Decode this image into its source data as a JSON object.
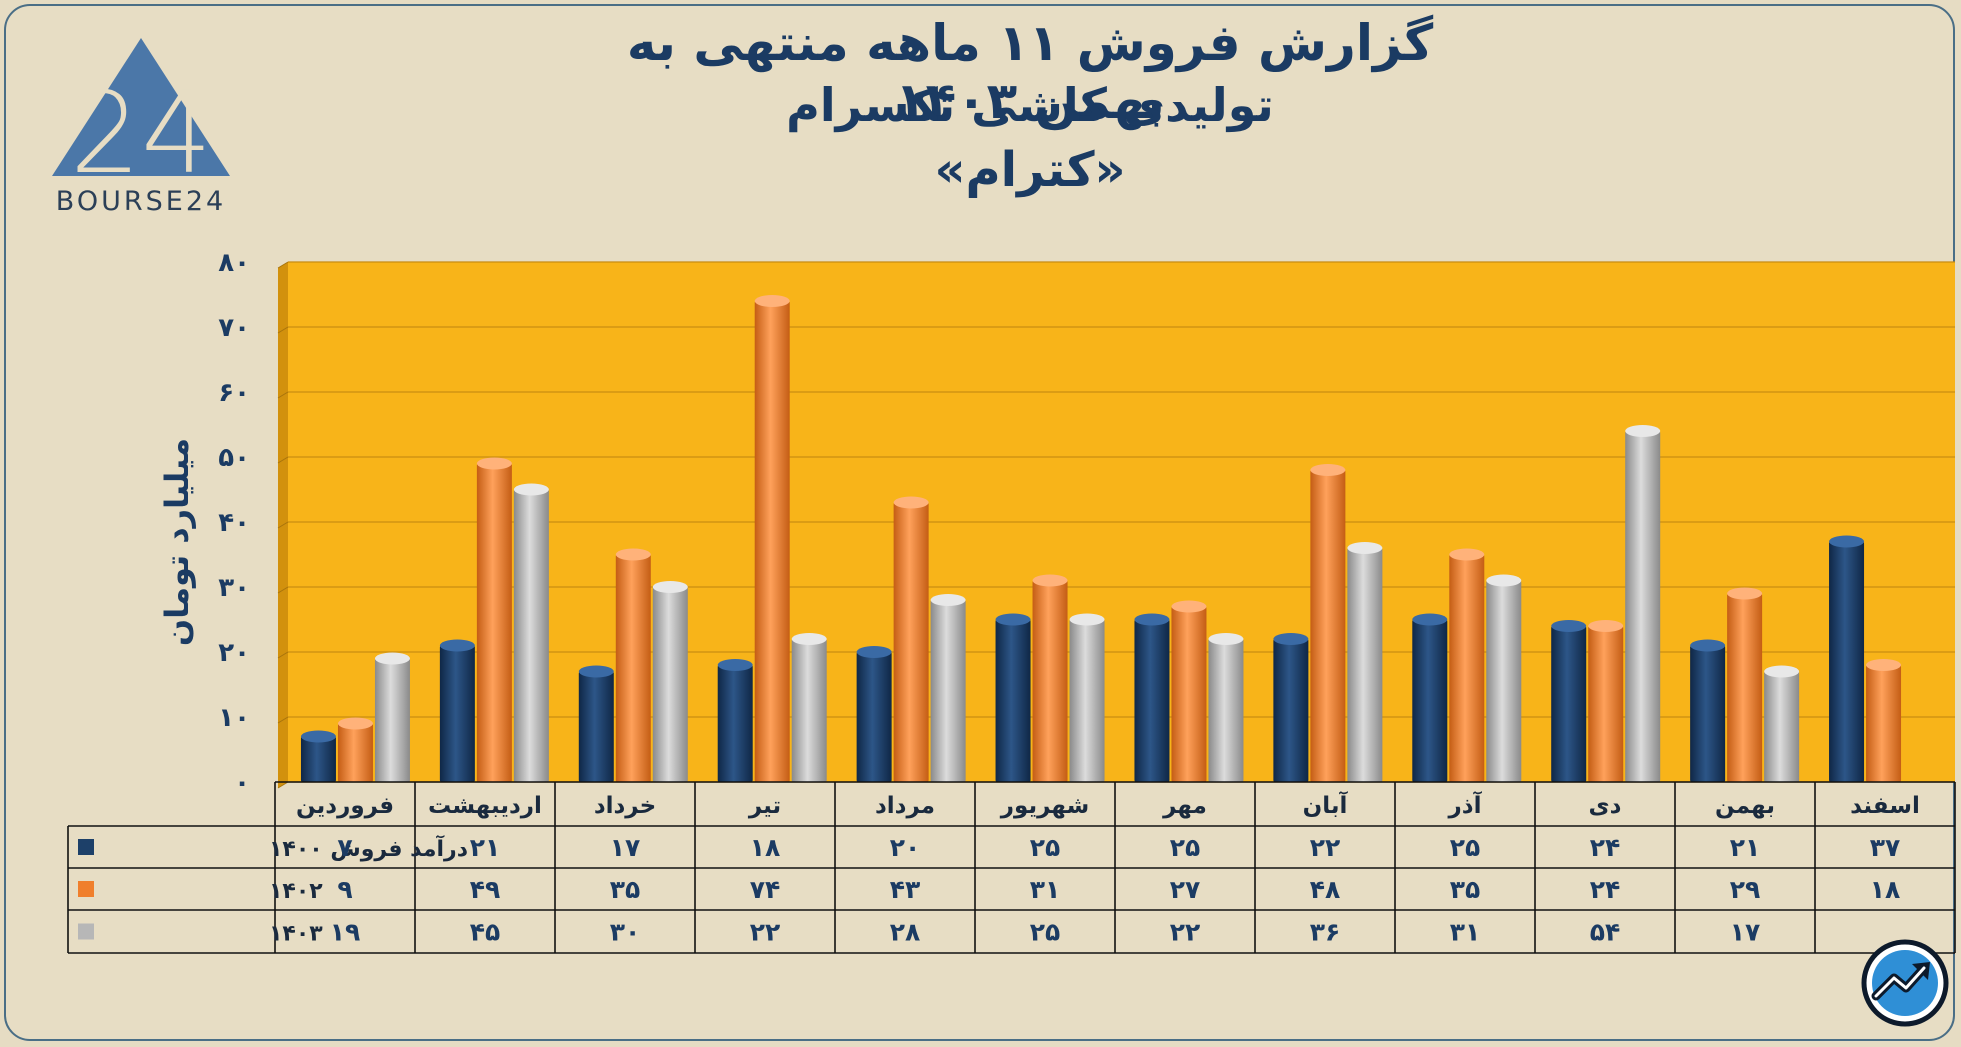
{
  "title": {
    "line1": "گزارش  فروش ۱۱ ماهه منتهی به بهمن ۱۴۰۳",
    "line2": "تولیدی کاشی تکسرام",
    "line3": "«کترام»"
  },
  "logo": {
    "text": "BOURSE24",
    "mark": "24",
    "icon": "bourse24-triangle-logo"
  },
  "corner_icon": "trend-arrow-circle-icon",
  "colors": {
    "plot_bg": "#f8b419",
    "plot_side": "#d2910d",
    "s1400": "#1d4069",
    "s1402": "#f07f2c",
    "s1403": "#b7b7b7",
    "axis_text": "#1b3b63"
  },
  "chart_data": {
    "type": "bar",
    "ylabel": "میلیارد تومان",
    "ylim": [
      0,
      80
    ],
    "yticks": [
      "۰",
      "۱۰",
      "۲۰",
      "۳۰",
      "۴۰",
      "۵۰",
      "۶۰",
      "۷۰",
      "۸۰"
    ],
    "categories": [
      "فروردین",
      "اردیبهشت",
      "خرداد",
      "تیر",
      "مرداد",
      "شهریور",
      "مهر",
      "آبان",
      "آذر",
      "دی",
      "بهمن",
      "اسفند"
    ],
    "series": [
      {
        "name": "درآمد فروش ۱۴۰۰",
        "values": [
          7,
          21,
          17,
          18,
          20,
          25,
          25,
          22,
          25,
          24,
          21,
          37
        ],
        "labels": [
          "۷",
          "۲۱",
          "۱۷",
          "۱۸",
          "۲۰",
          "۲۵",
          "۲۵",
          "۲۲",
          "۲۵",
          "۲۴",
          "۲۱",
          "۳۷"
        ]
      },
      {
        "name": "۱۴۰۲",
        "values": [
          9,
          49,
          35,
          74,
          43,
          31,
          27,
          48,
          35,
          24,
          29,
          18
        ],
        "labels": [
          "۹",
          "۴۹",
          "۳۵",
          "۷۴",
          "۴۳",
          "۳۱",
          "۲۷",
          "۴۸",
          "۳۵",
          "۲۴",
          "۲۹",
          "۱۸"
        ]
      },
      {
        "name": "۱۴۰۳",
        "values": [
          19,
          45,
          30,
          22,
          28,
          25,
          22,
          36,
          31,
          54,
          17,
          null
        ],
        "labels": [
          "۱۹",
          "۴۵",
          "۳۰",
          "۲۲",
          "۲۸",
          "۲۵",
          "۲۲",
          "۳۶",
          "۳۱",
          "۵۴",
          "۱۷",
          ""
        ]
      }
    ],
    "legend": "data-table-left",
    "grid": true
  }
}
